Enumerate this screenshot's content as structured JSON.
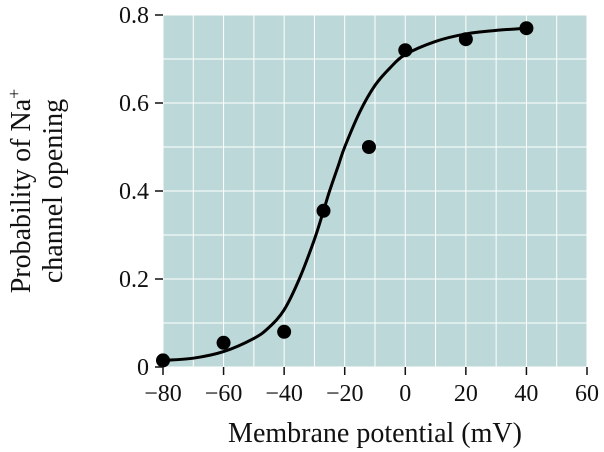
{
  "chart_data": {
    "type": "scatter",
    "title": "",
    "xlabel": "Membrane potential (mV)",
    "ylabel_line1": "Probability of Na",
    "ylabel_superscript": "+",
    "ylabel_line2": "channel opening",
    "xlim": [
      -80,
      60
    ],
    "ylim": [
      0,
      0.8
    ],
    "x_ticks": [
      -80,
      -60,
      -40,
      -20,
      0,
      20,
      40,
      60
    ],
    "x_tick_labels": [
      "−80",
      "−60",
      "−40",
      "−20",
      "0",
      "20",
      "40",
      "60"
    ],
    "y_ticks": [
      0,
      0.2,
      0.4,
      0.6,
      0.8
    ],
    "y_tick_labels": [
      "0",
      "0.2",
      "0.4",
      "0.6",
      "0.8"
    ],
    "grid": true,
    "series": [
      {
        "kind": "points",
        "x": [
          -80,
          -60,
          -40,
          -27,
          -12,
          0,
          20,
          40
        ],
        "y": [
          0.015,
          0.055,
          0.08,
          0.355,
          0.5,
          0.72,
          0.745,
          0.77
        ]
      },
      {
        "kind": "fit-curve",
        "x": [
          -80,
          -70,
          -60,
          -50,
          -45,
          -40,
          -35,
          -30,
          -27,
          -25,
          -22,
          -20,
          -15,
          -10,
          -5,
          0,
          10,
          20,
          30,
          40
        ],
        "y": [
          0.015,
          0.02,
          0.035,
          0.065,
          0.09,
          0.13,
          0.2,
          0.29,
          0.355,
          0.4,
          0.46,
          0.5,
          0.58,
          0.64,
          0.68,
          0.71,
          0.74,
          0.757,
          0.765,
          0.77
        ]
      }
    ],
    "colors": {
      "plot_background": "#bdd8d8",
      "grid": "#ffffff",
      "marker": "#000000",
      "curve": "#000000"
    }
  }
}
